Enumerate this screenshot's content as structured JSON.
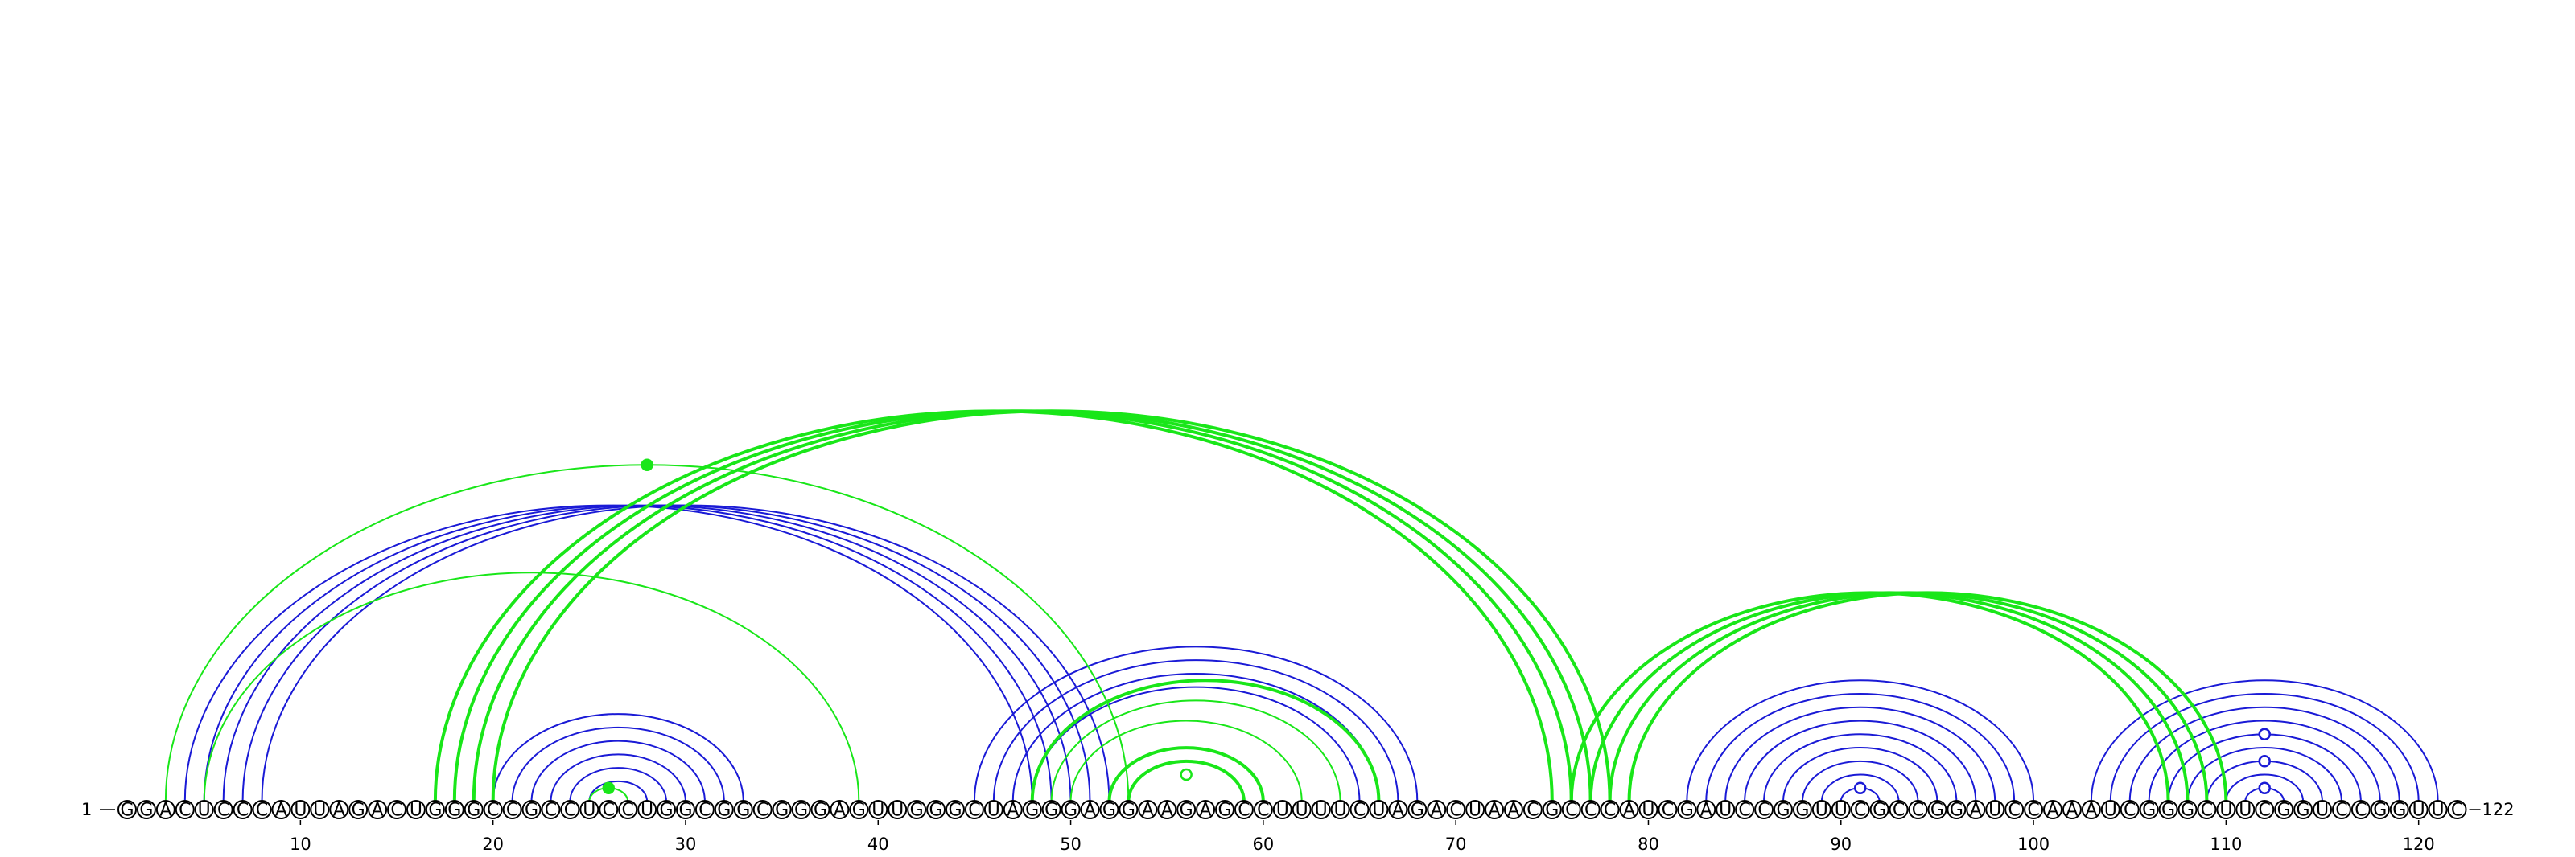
{
  "diagram": {
    "sequence": "GGACUCCCAUUAGACUGGGCCGCCUCCUGGCGGCGGGAGUUGGGCUAGGGAGGAAGAGCCUUUUCUAGACUAACGCCCAUCGAUCCGGUUCGCCGGAUCCAAAUCGGGCUUCGGUCCGGUUC",
    "start_label": "1",
    "end_label": "122",
    "tick_positions": [
      10,
      20,
      30,
      40,
      50,
      60,
      70,
      80,
      90,
      100,
      110,
      120
    ],
    "tick_labels": [
      "10",
      "20",
      "30",
      "40",
      "50",
      "60",
      "70",
      "80",
      "90",
      "100",
      "110",
      "120"
    ],
    "colors": {
      "blue": "#1a1ad6",
      "green": "#19e619"
    },
    "arcs": [
      {
        "i": 4,
        "j": 48,
        "c": "blue",
        "w": 2
      },
      {
        "i": 5,
        "j": 49,
        "c": "blue",
        "w": 2
      },
      {
        "i": 6,
        "j": 50,
        "c": "blue",
        "w": 2
      },
      {
        "i": 7,
        "j": 51,
        "c": "blue",
        "w": 2
      },
      {
        "i": 8,
        "j": 52,
        "c": "blue",
        "w": 2
      },
      {
        "i": 20,
        "j": 33,
        "c": "blue",
        "w": 2
      },
      {
        "i": 21,
        "j": 32,
        "c": "blue",
        "w": 2
      },
      {
        "i": 22,
        "j": 31,
        "c": "blue",
        "w": 2
      },
      {
        "i": 23,
        "j": 30,
        "c": "blue",
        "w": 2
      },
      {
        "i": 24,
        "j": 29,
        "c": "blue",
        "w": 2
      },
      {
        "i": 25,
        "j": 28,
        "c": "blue",
        "w": 2
      },
      {
        "i": 45,
        "j": 68,
        "c": "blue",
        "w": 2
      },
      {
        "i": 46,
        "j": 67,
        "c": "blue",
        "w": 2
      },
      {
        "i": 47,
        "j": 66,
        "c": "blue",
        "w": 2
      },
      {
        "i": 48,
        "j": 65,
        "c": "blue",
        "w": 2
      },
      {
        "i": 82,
        "j": 100,
        "c": "blue",
        "w": 2
      },
      {
        "i": 83,
        "j": 99,
        "c": "blue",
        "w": 2
      },
      {
        "i": 84,
        "j": 98,
        "c": "blue",
        "w": 2
      },
      {
        "i": 85,
        "j": 97,
        "c": "blue",
        "w": 2
      },
      {
        "i": 86,
        "j": 96,
        "c": "blue",
        "w": 2
      },
      {
        "i": 87,
        "j": 95,
        "c": "blue",
        "w": 2
      },
      {
        "i": 88,
        "j": 94,
        "c": "blue",
        "w": 2
      },
      {
        "i": 89,
        "j": 93,
        "c": "blue",
        "w": 2
      },
      {
        "i": 90,
        "j": 92,
        "c": "blue",
        "w": 2
      },
      {
        "i": 103,
        "j": 121,
        "c": "blue",
        "w": 2
      },
      {
        "i": 104,
        "j": 120,
        "c": "blue",
        "w": 2
      },
      {
        "i": 105,
        "j": 119,
        "c": "blue",
        "w": 2
      },
      {
        "i": 106,
        "j": 118,
        "c": "blue",
        "w": 2
      },
      {
        "i": 107,
        "j": 117,
        "c": "blue",
        "w": 2
      },
      {
        "i": 108,
        "j": 116,
        "c": "blue",
        "w": 2
      },
      {
        "i": 109,
        "j": 115,
        "c": "blue",
        "w": 2
      },
      {
        "i": 110,
        "j": 114,
        "c": "blue",
        "w": 2
      },
      {
        "i": 111,
        "j": 113,
        "c": "blue",
        "w": 2
      },
      {
        "i": 3,
        "j": 53,
        "c": "green",
        "w": 2
      },
      {
        "i": 5,
        "j": 39,
        "c": "green",
        "w": 2
      },
      {
        "i": 17,
        "j": 75,
        "c": "green",
        "w": 4
      },
      {
        "i": 18,
        "j": 76,
        "c": "green",
        "w": 4
      },
      {
        "i": 19,
        "j": 77,
        "c": "green",
        "w": 4
      },
      {
        "i": 20,
        "j": 78,
        "c": "green",
        "w": 4
      },
      {
        "i": 25,
        "j": 27,
        "c": "green",
        "w": 2
      },
      {
        "i": 48,
        "j": 66,
        "c": "green",
        "w": 4
      },
      {
        "i": 49,
        "j": 64,
        "c": "green",
        "w": 2
      },
      {
        "i": 50,
        "j": 62,
        "c": "green",
        "w": 2
      },
      {
        "i": 52,
        "j": 60,
        "c": "green",
        "w": 4
      },
      {
        "i": 53,
        "j": 59,
        "c": "green",
        "w": 4
      },
      {
        "i": 76,
        "j": 107,
        "c": "green",
        "w": 4
      },
      {
        "i": 77,
        "j": 108,
        "c": "green",
        "w": 4
      },
      {
        "i": 78,
        "j": 109,
        "c": "green",
        "w": 4
      },
      {
        "i": 79,
        "j": 110,
        "c": "green",
        "w": 4
      }
    ],
    "dots": [
      {
        "i": 3,
        "j": 53,
        "c": "green",
        "filled": true
      },
      {
        "i": 25,
        "j": 27,
        "c": "green",
        "filled": true
      },
      {
        "i": 54,
        "j": 58,
        "c": "green",
        "filled": false
      },
      {
        "i": 90,
        "j": 92,
        "c": "blue",
        "filled": false
      },
      {
        "i": 111,
        "j": 113,
        "c": "blue",
        "filled": false
      },
      {
        "i": 109,
        "j": 115,
        "c": "blue",
        "filled": false
      },
      {
        "i": 107,
        "j": 117,
        "c": "blue",
        "filled": false
      }
    ]
  }
}
